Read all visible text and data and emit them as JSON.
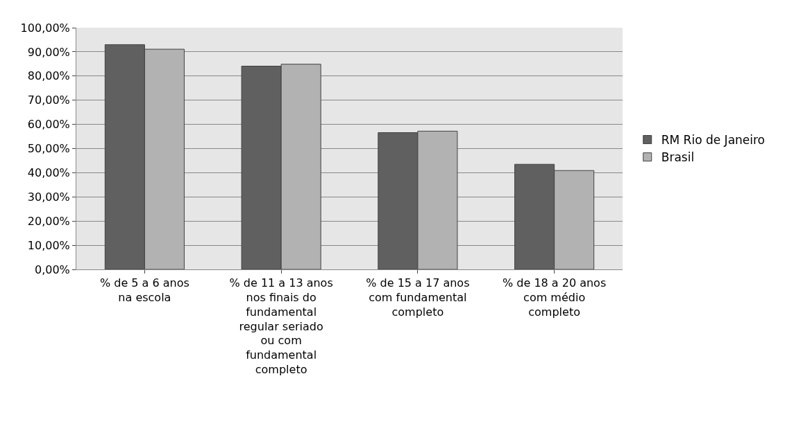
{
  "chart_data": {
    "type": "bar",
    "categories": [
      "% de 5 a 6 anos na escola",
      "% de 11 a 13 anos nos finais do fundamental regular seriado ou com fundamental completo",
      "% de 15 a 17 anos  com fundamental completo",
      "% de 18 a 20 anos com médio completo"
    ],
    "series": [
      {
        "name": "RM Rio de Janeiro",
        "color": "#606060",
        "values": [
          93.0,
          84.1,
          56.6,
          43.5
        ]
      },
      {
        "name": "Brasil",
        "color": "#b2b2b2",
        "values": [
          91.1,
          84.9,
          57.2,
          40.9
        ]
      }
    ],
    "ylim": [
      0,
      100
    ],
    "yticks": [
      {
        "value": 0,
        "label": "0,00%"
      },
      {
        "value": 10,
        "label": "10,00%"
      },
      {
        "value": 20,
        "label": "20,00%"
      },
      {
        "value": 30,
        "label": "30,00%"
      },
      {
        "value": 40,
        "label": "40,00%"
      },
      {
        "value": 50,
        "label": "50,00%"
      },
      {
        "value": 60,
        "label": "60,00%"
      },
      {
        "value": 70,
        "label": "70,00%"
      },
      {
        "value": 80,
        "label": "80,00%"
      },
      {
        "value": 90,
        "label": "90,00%"
      },
      {
        "value": 100,
        "label": "100,00%"
      }
    ],
    "grid": "y",
    "legend": "right"
  }
}
